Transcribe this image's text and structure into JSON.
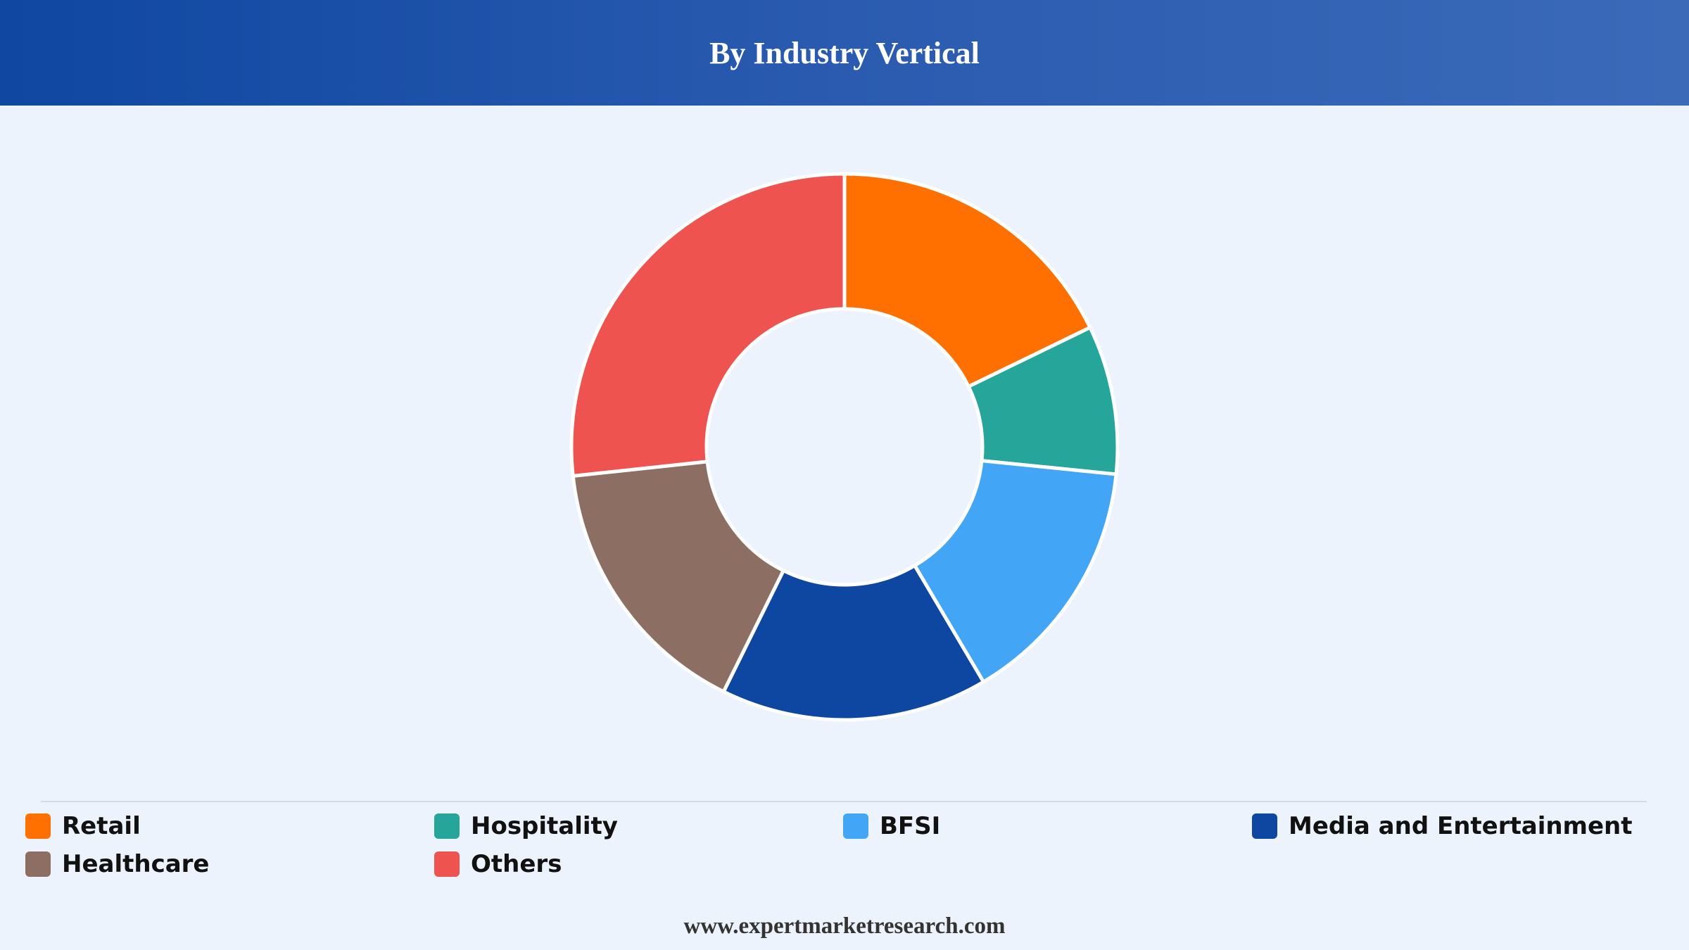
{
  "header": {
    "title": "By Industry Vertical"
  },
  "footer": {
    "website": "www.expertmarketresearch.com"
  },
  "chart_data": {
    "type": "pie",
    "variant": "donut",
    "title": "By Industry Vertical",
    "legend_position": "bottom",
    "categories": [
      "Retail",
      "Hospitality",
      "BFSI",
      "Media and Entertainment",
      "Healthcare",
      "Others"
    ],
    "values": [
      17.8,
      8.8,
      14.9,
      15.8,
      16.0,
      26.7
    ],
    "colors": [
      "#ff7000",
      "#26a69a",
      "#42a5f5",
      "#0d47a1",
      "#8d6e63",
      "#ef5350"
    ]
  }
}
